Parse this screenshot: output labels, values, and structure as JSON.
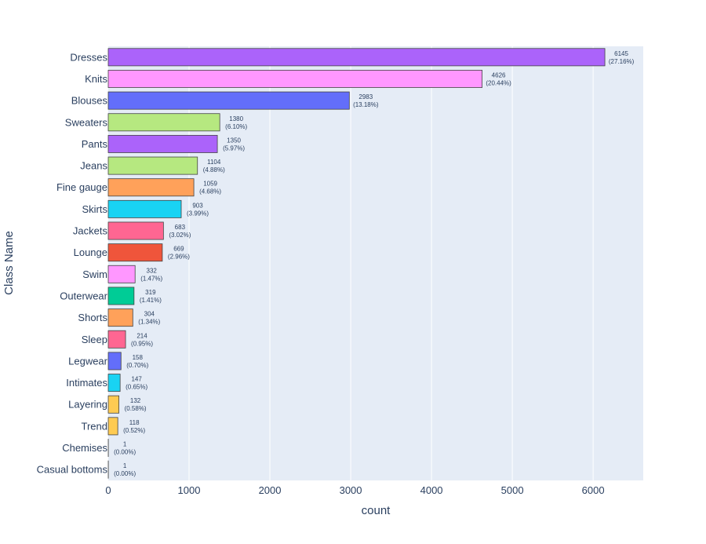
{
  "chart_data": {
    "type": "bar",
    "orientation": "horizontal",
    "title": "",
    "xlabel": "count",
    "ylabel": "Class Name",
    "xlim": [
      0,
      6620
    ],
    "xticks": [
      0,
      1000,
      2000,
      3000,
      4000,
      5000,
      6000
    ],
    "grid": true,
    "categories": [
      "Dresses",
      "Knits",
      "Blouses",
      "Sweaters",
      "Pants",
      "Jeans",
      "Fine gauge",
      "Skirts",
      "Jackets",
      "Lounge",
      "Swim",
      "Outerwear",
      "Shorts",
      "Sleep",
      "Legwear",
      "Intimates",
      "Layering",
      "Trend",
      "Chemises",
      "Casual bottoms"
    ],
    "values": [
      6145,
      4626,
      2983,
      1380,
      1350,
      1104,
      1059,
      903,
      683,
      669,
      332,
      319,
      304,
      214,
      158,
      147,
      132,
      118,
      1,
      1
    ],
    "percent_labels": [
      "(27.16%)",
      "(20.44%)",
      "(13.18%)",
      "(6.10%)",
      "(5.97%)",
      "(4.88%)",
      "(4.68%)",
      "(3.99%)",
      "(3.02%)",
      "(2.96%)",
      "(1.47%)",
      "(1.41%)",
      "(1.34%)",
      "(0.95%)",
      "(0.70%)",
      "(0.65%)",
      "(0.58%)",
      "(0.52%)",
      "(0.00%)",
      "(0.00%)"
    ],
    "colors": [
      "#AB63FA",
      "#FF97FF",
      "#636EFA",
      "#B6E880",
      "#AB63FA",
      "#B6E880",
      "#FFA15A",
      "#19D3F3",
      "#FF6692",
      "#EF553B",
      "#FF97FF",
      "#00CC96",
      "#FFA15A",
      "#FF6692",
      "#636EFA",
      "#19D3F3",
      "#FECB52",
      "#FECB52",
      "#636EFA",
      "#636EFA"
    ]
  },
  "style": {
    "plot_bg": "#E5ECF6",
    "grid_color": "#ffffff",
    "bar_outline": "#444444"
  }
}
